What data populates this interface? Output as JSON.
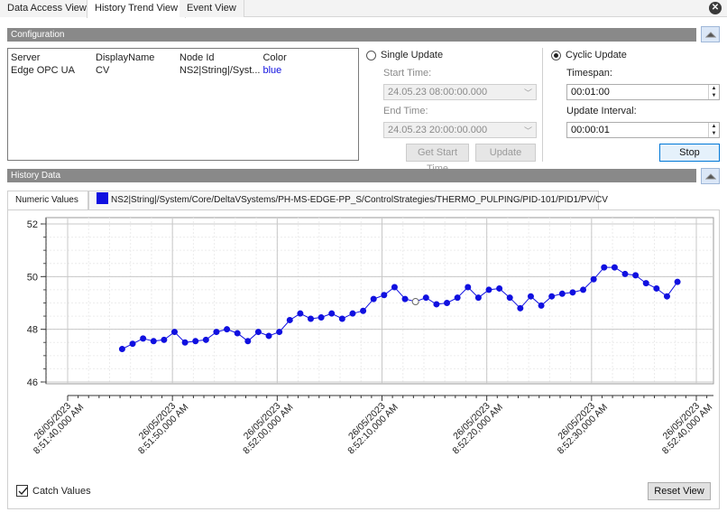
{
  "tabs": [
    "Data Access View",
    "History Trend View",
    "Event View"
  ],
  "active_tab": "History Trend View",
  "configuration": {
    "title": "Configuration",
    "table": {
      "headers": [
        "Server",
        "DisplayName",
        "Node Id",
        "Color"
      ],
      "rows": [
        [
          "Edge OPC UA",
          "CV",
          "NS2|String|/Syst...",
          "blue"
        ]
      ]
    },
    "single_update": {
      "label": "Single Update",
      "selected": false,
      "start_time_label": "Start Time:",
      "start_time": "24.05.23 08:00:00.000",
      "end_time_label": "End Time:",
      "end_time": "24.05.23 20:00:00.000",
      "get_start_time_label": "Get Start Time",
      "update_label": "Update"
    },
    "cyclic_update": {
      "label": "Cyclic Update",
      "selected": true,
      "timespan_label": "Timespan:",
      "timespan": "00:01:00",
      "interval_label": "Update Interval:",
      "interval": "00:00:01",
      "stop_label": "Stop"
    }
  },
  "history": {
    "title": "History Data",
    "tabs": [
      "Numeric Values",
      "NS2|String|/System/Core/DeltaVSystems/PH-MS-EDGE-PP_S/ControlStrategies/THERMO_PULPING/PID-101/PID1/PV/CV"
    ],
    "series_color": "#1010e0",
    "catch_values_label": "Catch Values",
    "catch_values_checked": true,
    "reset_view_label": "Reset View"
  },
  "chart_data": {
    "type": "line",
    "ylim": [
      46,
      52.2
    ],
    "yticks": [
      46,
      48,
      50,
      52
    ],
    "xlim": [
      0,
      62
    ],
    "xticks": [
      {
        "t": 0,
        "date": "26/05/2023",
        "time": "8:51:40,000 AM"
      },
      {
        "t": 10,
        "date": "26/05/2023",
        "time": "8:51:50,000 AM"
      },
      {
        "t": 20,
        "date": "26/05/2023",
        "time": "8:52:00,000 AM"
      },
      {
        "t": 30,
        "date": "26/05/2023",
        "time": "8:52:10,000 AM"
      },
      {
        "t": 40,
        "date": "26/05/2023",
        "time": "8:52:20,000 AM"
      },
      {
        "t": 50,
        "date": "26/05/2023",
        "time": "8:52:30,000 AM"
      },
      {
        "t": 60,
        "date": "26/05/2023",
        "time": "8:52:40,000 AM"
      }
    ],
    "series": [
      {
        "x": [
          5.2,
          6.2,
          7.2,
          8.2,
          9.2,
          10.2,
          11.2,
          12.2,
          13.2,
          14.2,
          15.2,
          16.2,
          17.2,
          18.2,
          19.2,
          20.2,
          21.2,
          22.2,
          23.2,
          24.2,
          25.2,
          26.2,
          27.2,
          28.2,
          29.2,
          30.2,
          31.2,
          32.2,
          33.2,
          34.2,
          35.2,
          36.2,
          37.2,
          38.2,
          39.2,
          40.2,
          41.2,
          42.2,
          43.2,
          44.2,
          45.2,
          46.2,
          47.2,
          48.2,
          49.2,
          50.2,
          51.2,
          52.2,
          53.2,
          54.2,
          55.2,
          56.2,
          57.2,
          58.2,
          59.2,
          60.2
        ],
        "y": [
          47.25,
          47.45,
          47.65,
          47.55,
          47.6,
          47.9,
          47.5,
          47.55,
          47.6,
          47.9,
          48.0,
          47.85,
          47.55,
          47.9,
          47.75,
          47.9,
          48.35,
          48.6,
          48.4,
          48.45,
          48.6,
          48.4,
          48.6,
          48.7,
          49.15,
          49.3,
          49.6,
          49.15,
          49.05,
          49.2,
          48.95,
          49.0,
          49.2,
          49.6,
          49.2,
          49.5,
          49.55,
          49.2,
          48.8,
          49.25,
          48.9,
          49.25,
          49.35,
          49.4,
          49.5,
          49.9,
          50.35,
          50.35,
          50.1,
          50.05,
          49.75,
          49.55,
          49.25,
          49.8,
          null,
          null
        ],
        "highlight_index": 28
      }
    ]
  }
}
